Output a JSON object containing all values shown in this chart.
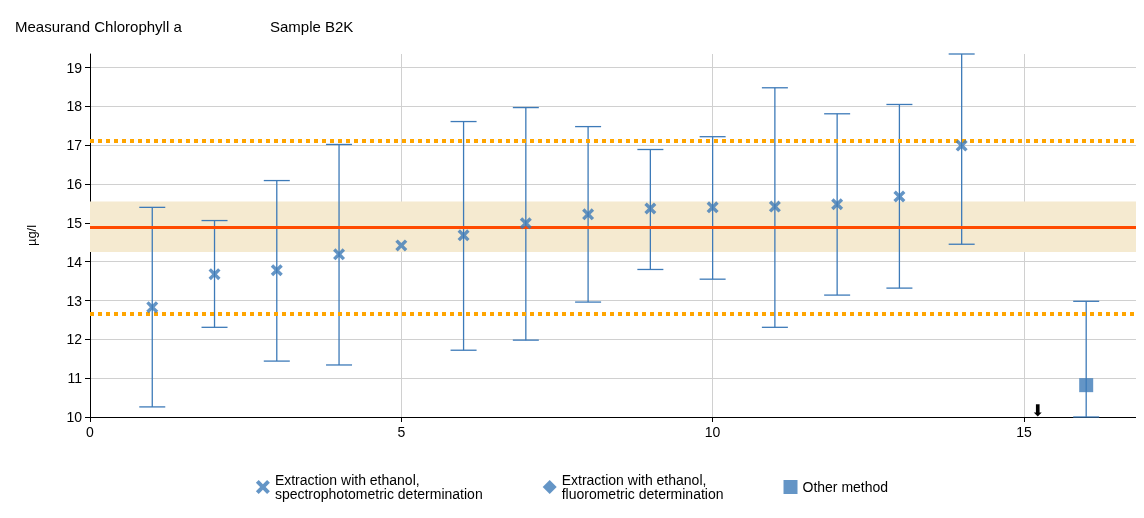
{
  "chart_data": {
    "type": "scatter",
    "title": "Measurand Chlorophyll a",
    "subtitle": "Sample B2K",
    "ylabel": "µg/l",
    "xlim": [
      0,
      16.8
    ],
    "xticks": [
      0,
      5,
      10,
      15
    ],
    "ylim": [
      10,
      19.35
    ],
    "yticks": [
      10,
      11,
      12,
      13,
      14,
      15,
      16,
      17,
      18,
      19
    ],
    "grid": true,
    "legend": "bottom",
    "series": [
      {
        "name": "Extraction with ethanol,\nspectrophotometric determination",
        "color": "#3d7ab8",
        "marker": "cross",
        "x": [
          1,
          2,
          3,
          4,
          5,
          6,
          7,
          8,
          9,
          10,
          11,
          12,
          13,
          14
        ],
        "values": [
          12.83,
          13.68,
          13.78,
          14.19,
          14.42,
          14.68,
          14.99,
          15.22,
          15.37,
          15.4,
          15.42,
          15.48,
          15.68,
          16.99
        ],
        "errors": [
          [
            10.26,
            15.4
          ],
          [
            12.31,
            15.06
          ],
          [
            11.44,
            16.09
          ],
          [
            11.34,
            17.02
          ],
          null,
          [
            11.72,
            17.61
          ],
          [
            11.98,
            17.97
          ],
          [
            12.96,
            17.48
          ],
          [
            13.8,
            16.89
          ],
          [
            13.55,
            17.22
          ],
          [
            12.31,
            18.48
          ],
          [
            13.14,
            17.81
          ],
          [
            13.32,
            18.05
          ],
          [
            14.45,
            19.35
          ]
        ]
      },
      {
        "name": "Extraction with ethanol,\nfluorometric determination",
        "color": "#3d7ab8",
        "marker": "diamond"
      },
      {
        "name": "Other method",
        "color": "#3d7ab8",
        "marker": "square",
        "x": [
          16
        ],
        "values": [
          10.82
        ],
        "errors": [
          [
            10,
            12.98
          ]
        ]
      }
    ],
    "ref_lines": [
      {
        "axis": "y",
        "value": 14.88,
        "color": "#ff4a00",
        "line_style": "solid"
      },
      {
        "axis": "y",
        "value": 17.12,
        "color": "#ffa500",
        "line_style": "dotted"
      },
      {
        "axis": "y",
        "value": 12.65,
        "color": "#ffa500",
        "line_style": "dotted"
      }
    ],
    "annotations": [
      "⬇"
    ],
    "bands": [
      {
        "axis": "y",
        "from": 14.25,
        "to": 15.55,
        "color": "#f5ead0"
      }
    ]
  }
}
